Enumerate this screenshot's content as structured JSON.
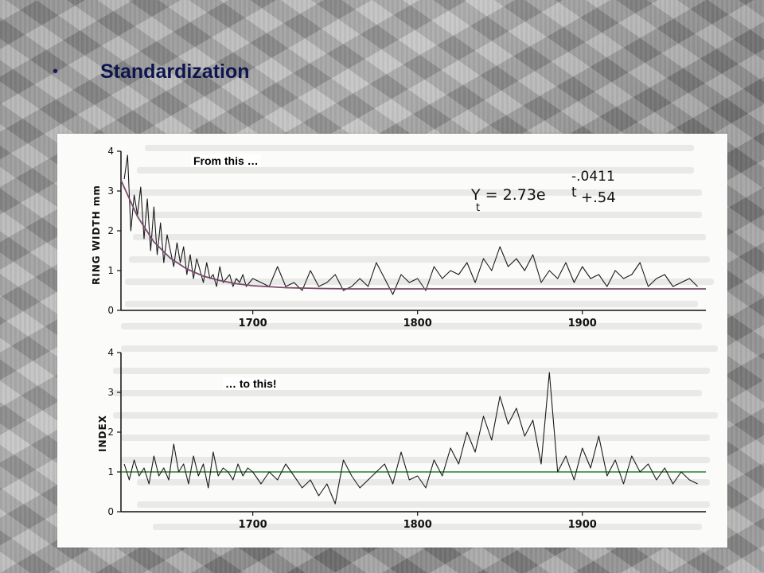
{
  "slide": {
    "bullet": "•",
    "title": "Standardization"
  },
  "annotations": {
    "top": "From this …",
    "bottom": "… to this!"
  },
  "formula": {
    "main": "Y = 2.73e",
    "subscript": "t",
    "exponent": "-.0411 t",
    "addend": "+.54"
  },
  "chart_data": [
    {
      "type": "line",
      "title": "",
      "ylabel": "RING WIDTH mm",
      "xlabel": "",
      "xlim": [
        1620,
        1975
      ],
      "ylim": [
        0,
        4
      ],
      "yticks": [
        0,
        1,
        2,
        3,
        4
      ],
      "xticks": [
        1700,
        1800,
        1900
      ],
      "grid": false,
      "series": [
        {
          "x": [
            1622,
            1624,
            1626,
            1628,
            1630,
            1632,
            1634,
            1636,
            1638,
            1640,
            1642,
            1644,
            1646,
            1648,
            1650,
            1652,
            1654,
            1656,
            1658,
            1660,
            1662,
            1664,
            1666,
            1668,
            1670,
            1672,
            1674,
            1676,
            1678,
            1680,
            1682,
            1684,
            1686,
            1688,
            1690,
            1692,
            1694,
            1696,
            1698,
            1700,
            1705,
            1710,
            1715,
            1720,
            1725,
            1730,
            1735,
            1740,
            1745,
            1750,
            1755,
            1760,
            1765,
            1770,
            1775,
            1780,
            1785,
            1790,
            1795,
            1800,
            1805,
            1810,
            1815,
            1820,
            1825,
            1830,
            1835,
            1840,
            1845,
            1850,
            1855,
            1860,
            1865,
            1870,
            1875,
            1880,
            1885,
            1890,
            1895,
            1900,
            1905,
            1910,
            1915,
            1920,
            1925,
            1930,
            1935,
            1940,
            1945,
            1950,
            1955,
            1960,
            1965,
            1970
          ],
          "values": [
            3.3,
            3.9,
            2.0,
            2.9,
            2.4,
            3.1,
            1.8,
            2.8,
            1.5,
            2.6,
            1.4,
            2.2,
            1.2,
            1.9,
            1.5,
            1.1,
            1.7,
            1.2,
            1.6,
            0.9,
            1.4,
            0.8,
            1.3,
            1.0,
            0.7,
            1.2,
            0.8,
            0.9,
            0.6,
            1.1,
            0.7,
            0.8,
            0.9,
            0.6,
            0.8,
            0.7,
            0.9,
            0.6,
            0.7,
            0.8,
            0.7,
            0.6,
            1.1,
            0.6,
            0.7,
            0.5,
            1.0,
            0.6,
            0.7,
            0.9,
            0.5,
            0.6,
            0.8,
            0.6,
            1.2,
            0.8,
            0.4,
            0.9,
            0.7,
            0.8,
            0.5,
            1.1,
            0.8,
            1.0,
            0.9,
            1.2,
            0.7,
            1.3,
            1.0,
            1.6,
            1.1,
            1.3,
            1.0,
            1.4,
            0.7,
            1.0,
            0.8,
            1.2,
            0.7,
            1.1,
            0.8,
            0.9,
            0.6,
            1.0,
            0.8,
            0.9,
            1.2,
            0.6,
            0.8,
            0.9,
            0.6,
            0.7,
            0.8,
            0.6
          ]
        },
        {
          "name": "Y = 2.73e^(-.0411 t) + .54",
          "x": [
            1620,
            1630,
            1640,
            1650,
            1660,
            1670,
            1680,
            1690,
            1700,
            1720,
            1740,
            1760,
            1800,
            1850,
            1900,
            1950,
            1975
          ],
          "values": [
            3.27,
            2.36,
            1.72,
            1.31,
            1.04,
            0.86,
            0.75,
            0.67,
            0.62,
            0.57,
            0.55,
            0.54,
            0.54,
            0.54,
            0.54,
            0.54,
            0.54
          ]
        }
      ]
    },
    {
      "type": "line",
      "title": "",
      "ylabel": "INDEX",
      "xlabel": "",
      "xlim": [
        1620,
        1975
      ],
      "ylim": [
        0,
        4
      ],
      "yticks": [
        0,
        1,
        2,
        3,
        4
      ],
      "xticks": [
        1700,
        1800,
        1900
      ],
      "reference_line": 1,
      "grid": false,
      "series": [
        {
          "x": [
            1622,
            1625,
            1628,
            1631,
            1634,
            1637,
            1640,
            1643,
            1646,
            1649,
            1652,
            1655,
            1658,
            1661,
            1664,
            1667,
            1670,
            1673,
            1676,
            1679,
            1682,
            1685,
            1688,
            1691,
            1694,
            1697,
            1700,
            1705,
            1710,
            1715,
            1720,
            1725,
            1730,
            1735,
            1740,
            1745,
            1750,
            1755,
            1760,
            1765,
            1770,
            1775,
            1780,
            1785,
            1790,
            1795,
            1800,
            1805,
            1810,
            1815,
            1820,
            1825,
            1830,
            1835,
            1840,
            1845,
            1850,
            1855,
            1860,
            1865,
            1870,
            1875,
            1880,
            1885,
            1890,
            1895,
            1900,
            1905,
            1910,
            1915,
            1920,
            1925,
            1930,
            1935,
            1940,
            1945,
            1950,
            1955,
            1960,
            1965,
            1970
          ],
          "values": [
            1.2,
            0.8,
            1.3,
            0.9,
            1.1,
            0.7,
            1.4,
            0.9,
            1.1,
            0.8,
            1.7,
            1.0,
            1.2,
            0.7,
            1.4,
            0.9,
            1.2,
            0.6,
            1.5,
            0.9,
            1.1,
            1.0,
            0.8,
            1.2,
            0.9,
            1.1,
            1.0,
            0.7,
            1.0,
            0.8,
            1.2,
            0.9,
            0.6,
            0.8,
            0.4,
            0.7,
            0.2,
            1.3,
            0.9,
            0.6,
            0.8,
            1.0,
            1.2,
            0.7,
            1.5,
            0.8,
            0.9,
            0.6,
            1.3,
            0.9,
            1.6,
            1.2,
            2.0,
            1.5,
            2.4,
            1.8,
            2.9,
            2.2,
            2.6,
            1.9,
            2.3,
            1.2,
            3.5,
            1.0,
            1.4,
            0.8,
            1.6,
            1.1,
            1.9,
            0.9,
            1.3,
            0.7,
            1.4,
            1.0,
            1.2,
            0.8,
            1.1,
            0.7,
            1.0,
            0.8,
            0.7
          ]
        }
      ]
    }
  ]
}
